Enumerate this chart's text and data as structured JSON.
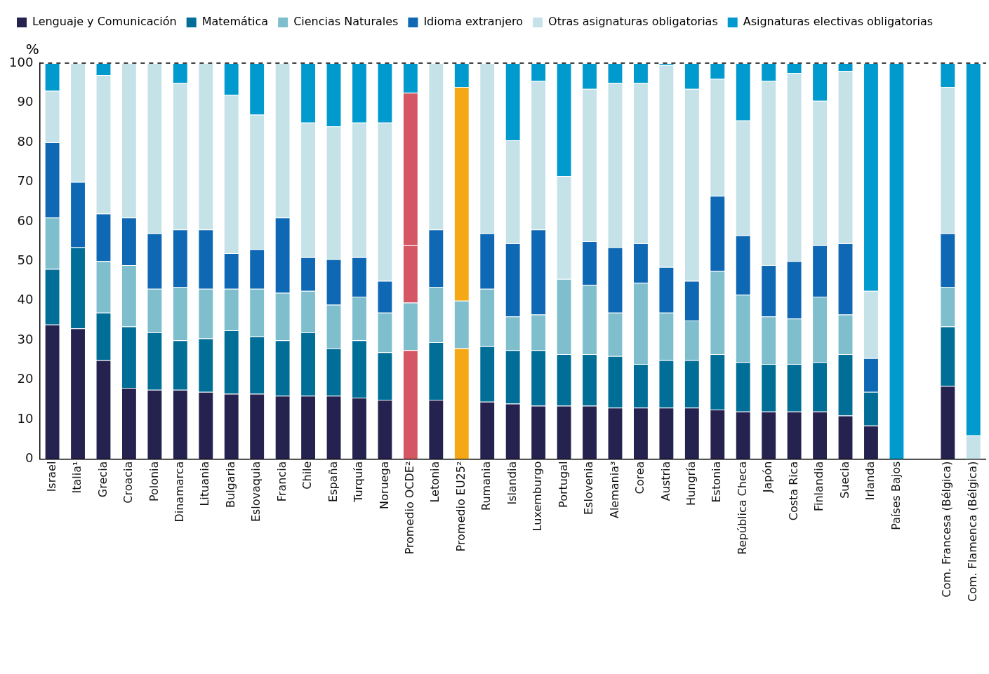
{
  "chart_data": {
    "type": "bar",
    "stacked": true,
    "ylabel": "%",
    "legend": "top",
    "grid": false,
    "categories": [
      "Israel",
      "Italia¹",
      "Grecia",
      "Croacia",
      "Polonia",
      "Dinamarca",
      "Lituania",
      "Bulgaria",
      "Eslovaquia",
      "Francia",
      "Chile",
      "España",
      "Turquía",
      "Noruega",
      "Promedio OCDE²",
      "Letonia",
      "Promedio EU25²",
      "Rumania",
      "Islandia",
      "Luxemburgo",
      "Portugal",
      "Eslovenia",
      "Alemania³",
      "Corea",
      "Austria",
      "Hungría",
      "Estonia",
      "República Checa",
      "Japón",
      "Costa Rica",
      "Finlandia",
      "Suecia",
      "Irlanda",
      "Países Bajos",
      null,
      "Com. Francesa (Bélgica)",
      "Com. Flamenca (Bélgica)"
    ],
    "ylim": [
      0,
      100
    ],
    "yticks": [
      0,
      10,
      20,
      30,
      40,
      50,
      60,
      70,
      80,
      90,
      100
    ],
    "ref_lines": [
      {
        "axis": "y",
        "value": 100,
        "color": "#000000",
        "line_style": "dashed"
      }
    ],
    "series": [
      {
        "name": "Lenguaje y Comunicación",
        "color": "#262250",
        "colors": [
          "#262250",
          "#262250",
          "#262250",
          "#262250",
          "#262250",
          "#262250",
          "#262250",
          "#262250",
          "#262250",
          "#262250",
          "#262250",
          "#262250",
          "#262250",
          "#262250",
          "#d45763",
          "#262250",
          "#f5a816",
          "#262250",
          "#262250",
          "#262250",
          "#262250",
          "#262250",
          "#262250",
          "#262250",
          "#262250",
          "#262250",
          "#262250",
          "#262250",
          "#262250",
          "#262250",
          "#262250",
          "#262250",
          "#262250",
          "#262250",
          "#262250",
          "#262250",
          "#262250"
        ],
        "values": [
          34,
          33,
          25,
          18,
          17.5,
          17.5,
          17,
          16.5,
          16.5,
          16,
          16,
          16,
          15.5,
          15,
          27.5,
          15,
          28,
          14.5,
          14,
          13.5,
          13.5,
          13.5,
          13,
          13,
          13,
          13,
          12.5,
          12,
          12,
          12,
          12,
          11,
          8.5,
          0,
          null,
          18.5,
          0
        ]
      },
      {
        "name": "Matemática",
        "color": "#006e96",
        "values": [
          14,
          20.5,
          12,
          15.5,
          14.5,
          12.5,
          13.5,
          16,
          14.5,
          14,
          16,
          12,
          14.5,
          12,
          null,
          14.5,
          null,
          14,
          13.5,
          14,
          13,
          13,
          13,
          11,
          12,
          12,
          14,
          12.5,
          12,
          12,
          12.5,
          15.5,
          8.5,
          0,
          null,
          15,
          0
        ]
      },
      {
        "name": "Ciencias Naturales",
        "color": "#7fbfcd",
        "values": [
          13,
          0,
          13,
          15.5,
          11,
          13.5,
          12.5,
          10.5,
          12,
          12,
          10.5,
          11,
          11,
          10,
          12,
          14,
          12,
          14.5,
          8.5,
          9,
          19,
          17.5,
          11,
          20.5,
          12,
          10,
          21,
          17,
          12,
          11.5,
          16.5,
          10,
          0,
          0,
          null,
          10,
          0
        ]
      },
      {
        "name": "Idioma extranjero",
        "color": "#0f68b4",
        "colors": [
          "#0f68b4",
          "#0f68b4",
          "#0f68b4",
          "#0f68b4",
          "#0f68b4",
          "#0f68b4",
          "#0f68b4",
          "#0f68b4",
          "#0f68b4",
          "#0f68b4",
          "#0f68b4",
          "#0f68b4",
          "#0f68b4",
          "#0f68b4",
          "#d45763",
          "#0f68b4",
          "#f5a816",
          "#0f68b4",
          "#0f68b4",
          "#0f68b4",
          "#0f68b4",
          "#0f68b4",
          "#0f68b4",
          "#0f68b4",
          "#0f68b4",
          "#0f68b4",
          "#0f68b4",
          "#0f68b4",
          "#0f68b4",
          "#0f68b4",
          "#0f68b4",
          "#0f68b4",
          "#0f68b4",
          "#0f68b4",
          "#0f68b4",
          "#0f68b4",
          "#0f68b4"
        ],
        "values": [
          19,
          16.5,
          12,
          12,
          14,
          14.5,
          15,
          9,
          10,
          19,
          8.5,
          11.5,
          10,
          8,
          14.5,
          14.5,
          54,
          14,
          18.5,
          21.5,
          0,
          11,
          16.5,
          10,
          11.5,
          10,
          19,
          15,
          13,
          14.5,
          13,
          18,
          8.5,
          0,
          null,
          13.5,
          0
        ]
      },
      {
        "name": "Otras asignaturas obligatorias",
        "color": "#c5e2e8",
        "colors": [
          "#c5e2e8",
          "#c5e2e8",
          "#c5e2e8",
          "#c5e2e8",
          "#c5e2e8",
          "#c5e2e8",
          "#c5e2e8",
          "#c5e2e8",
          "#c5e2e8",
          "#c5e2e8",
          "#c5e2e8",
          "#c5e2e8",
          "#c5e2e8",
          "#c5e2e8",
          "#d45763",
          "#c5e2e8",
          "#c5e2e8",
          "#c5e2e8",
          "#c5e2e8",
          "#c5e2e8",
          "#c5e2e8",
          "#c5e2e8",
          "#c5e2e8",
          "#c5e2e8",
          "#c5e2e8",
          "#c5e2e8",
          "#c5e2e8",
          "#c5e2e8",
          "#c5e2e8",
          "#c5e2e8",
          "#c5e2e8",
          "#c5e2e8",
          "#c5e2e8",
          "#c5e2e8",
          "#c5e2e8",
          "#c5e2e8",
          "#c5e2e8"
        ],
        "values": [
          13,
          30,
          35,
          39,
          43,
          37,
          42,
          40,
          34,
          39,
          34,
          33.5,
          34,
          40,
          38.5,
          42,
          null,
          43,
          26,
          37.5,
          26,
          38.5,
          41.5,
          40.5,
          51,
          48.5,
          29.5,
          29,
          46.5,
          47.5,
          36.5,
          43.5,
          17,
          0,
          null,
          37,
          6
        ]
      },
      {
        "name": "Asignaturas electivas obligatorias",
        "color": "#009ace",
        "values": [
          7,
          0,
          3,
          0,
          0,
          5,
          0,
          8,
          13,
          0,
          15,
          16,
          15,
          15,
          7.5,
          0,
          6,
          0,
          19.5,
          4.5,
          28.5,
          6.5,
          5,
          5,
          0.5,
          6.5,
          4,
          14.5,
          4.5,
          2.5,
          9.5,
          2,
          57.5,
          100,
          null,
          6,
          94
        ]
      }
    ]
  }
}
